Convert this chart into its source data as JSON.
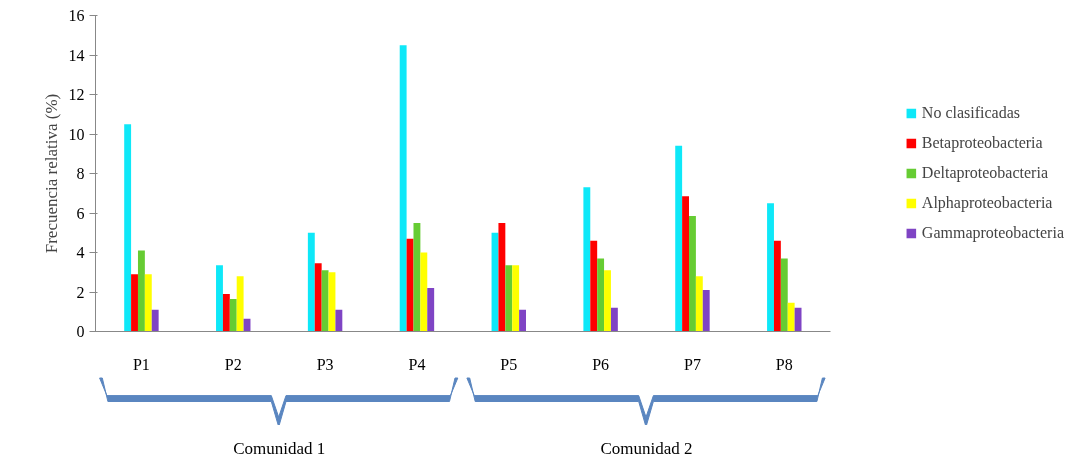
{
  "chart_data": {
    "type": "bar",
    "ylabel": "Frecuencia relativa (%)",
    "categories": [
      "P1",
      "P2",
      "P3",
      "P4",
      "P5",
      "P6",
      "P7",
      "P8"
    ],
    "series": [
      {
        "name": "No clasificadas",
        "color": "#0ee8f8",
        "values": [
          10.5,
          3.35,
          5.0,
          14.5,
          5.0,
          7.3,
          9.4,
          6.5
        ]
      },
      {
        "name": "Betaproteobacteria",
        "color": "#ff0000",
        "values": [
          2.9,
          1.9,
          3.45,
          4.7,
          5.5,
          4.6,
          6.85,
          4.6
        ]
      },
      {
        "name": "Deltaproteobacteria",
        "color": "#66cc33",
        "values": [
          4.1,
          1.65,
          3.1,
          5.5,
          3.35,
          3.7,
          5.85,
          3.7
        ]
      },
      {
        "name": "Alphaproteobacteria",
        "color": "#ffff00",
        "values": [
          2.9,
          2.8,
          3.0,
          4.0,
          3.35,
          3.1,
          2.8,
          1.45
        ]
      },
      {
        "name": "Gammaproteobacteria",
        "color": "#7f44c4",
        "values": [
          1.1,
          0.65,
          1.1,
          2.2,
          1.1,
          1.2,
          2.1,
          1.2
        ]
      }
    ],
    "ylim": [
      0,
      16
    ],
    "yticks": [
      0,
      2,
      4,
      6,
      8,
      10,
      12,
      14,
      16
    ],
    "grid": false,
    "legend": "right",
    "annotations": [
      "Comunidad 1",
      "Comunidad 2"
    ]
  }
}
